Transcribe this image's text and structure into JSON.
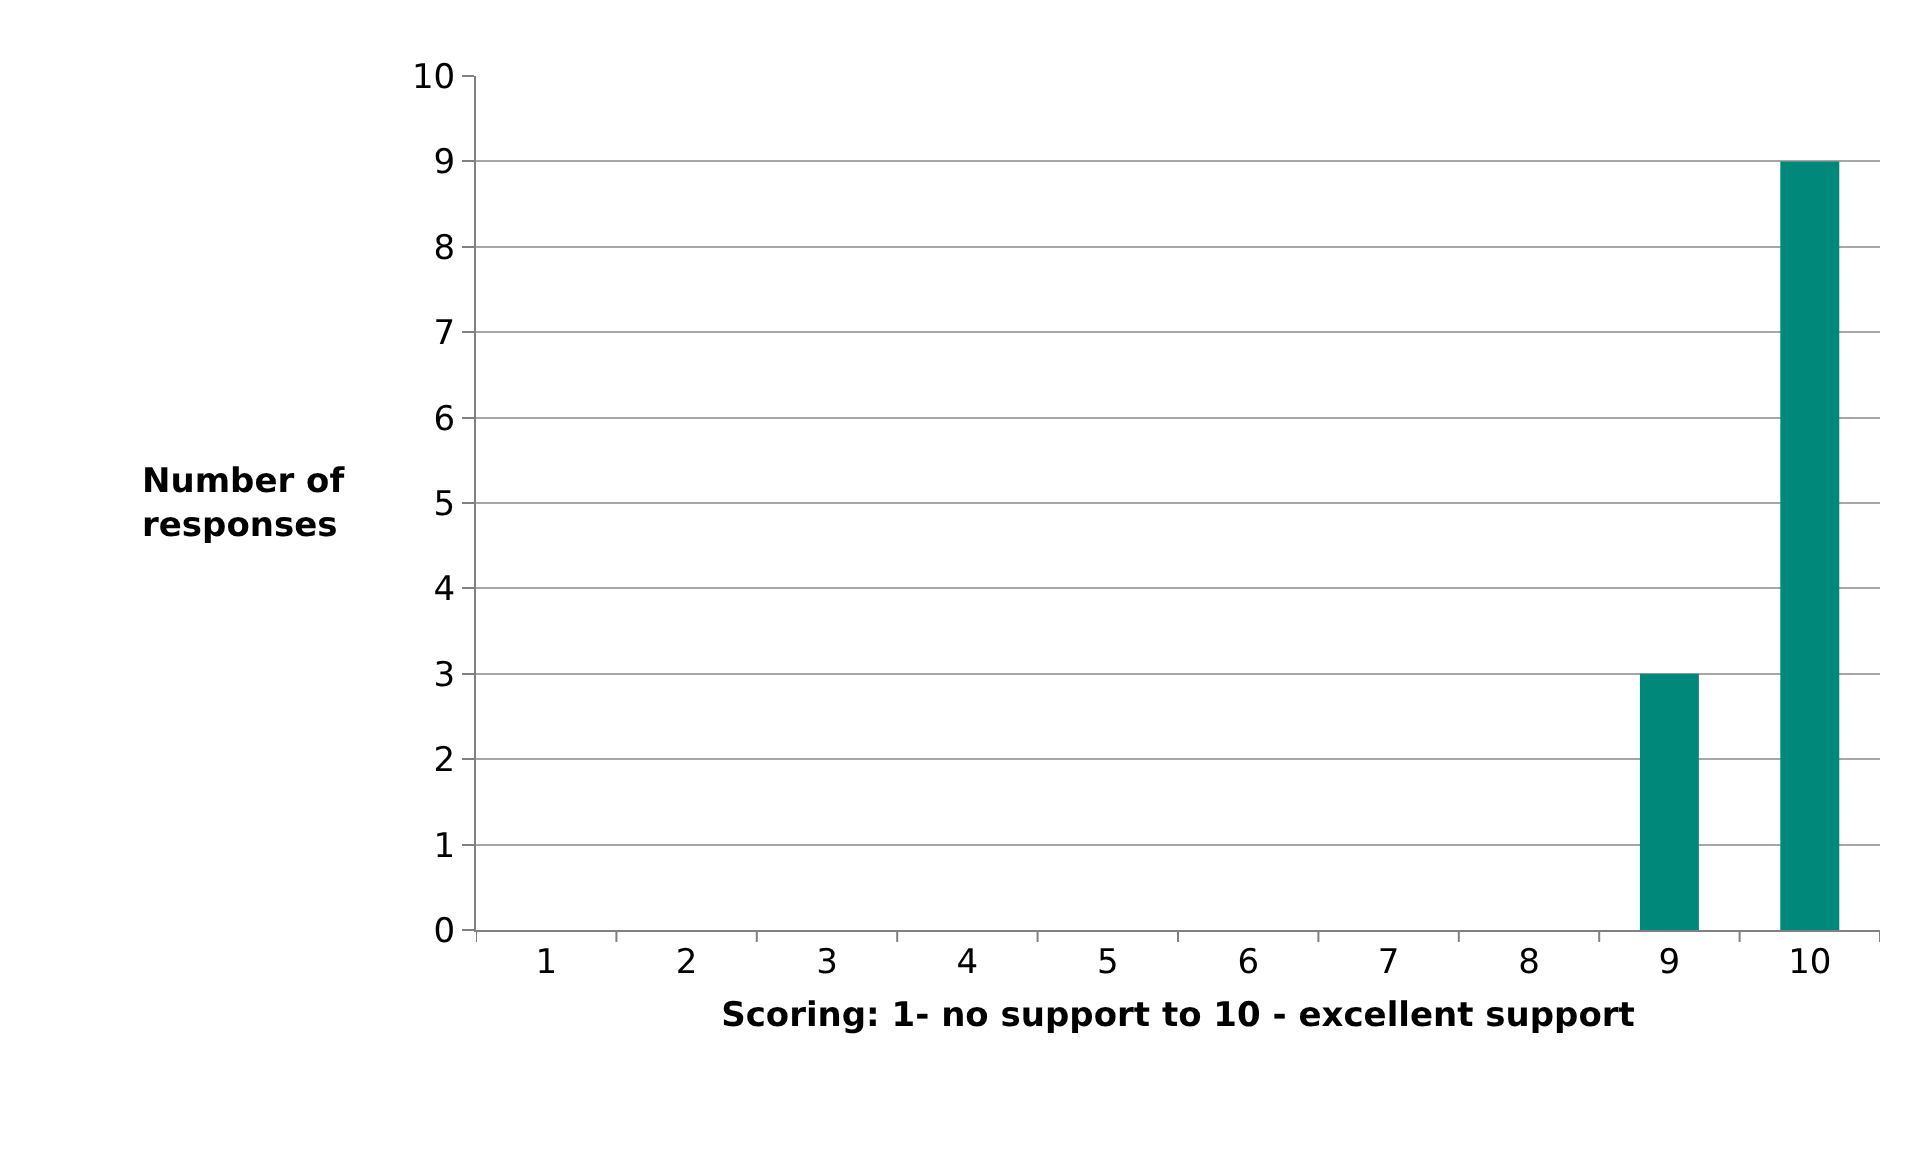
{
  "chart_data": {
    "type": "bar",
    "xlabel": "Scoring: 1- no support to 10 - excellent support",
    "ylabel": "Number of\nresponses",
    "categories": [
      "1",
      "2",
      "3",
      "4",
      "5",
      "6",
      "7",
      "8",
      "9",
      "10"
    ],
    "values": [
      0,
      0,
      0,
      0,
      0,
      0,
      0,
      0,
      3,
      9
    ],
    "color": "#00887a",
    "ylim": [
      0,
      10
    ],
    "yticks": [
      0,
      1,
      2,
      3,
      4,
      5,
      6,
      7,
      8,
      9,
      10
    ],
    "grid": "y",
    "legend": false
  }
}
